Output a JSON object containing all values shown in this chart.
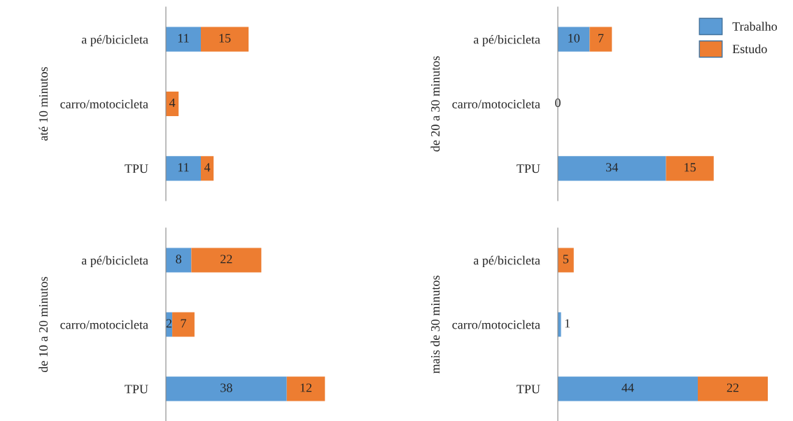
{
  "chart_data": [
    {
      "type": "bar",
      "orientation": "horizontal",
      "stacked": true,
      "ylabel": "até 10 minutos",
      "categories": [
        "a pé/bicicleta",
        "carro/motocicleta",
        "TPU"
      ],
      "data_labels": true,
      "grid": false,
      "series": [
        {
          "color": "#5b9bd5",
          "values": [
            11,
            null,
            11
          ]
        },
        {
          "color": "#ed7d31",
          "values": [
            15,
            4,
            4
          ]
        }
      ]
    },
    {
      "type": "bar",
      "orientation": "horizontal",
      "stacked": true,
      "ylabel": "de 20 a 30 minutos",
      "categories": [
        "a pé/bicicleta",
        "carro/motocicleta",
        "TPU"
      ],
      "data_labels": true,
      "legend": "top right",
      "grid": false,
      "series": [
        {
          "name": "Trabalho",
          "color": "#5b9bd5",
          "values": [
            10,
            0,
            34
          ]
        },
        {
          "name": "Estudo",
          "color": "#ed7d31",
          "values": [
            7,
            null,
            15
          ]
        }
      ]
    },
    {
      "type": "bar",
      "orientation": "horizontal",
      "stacked": true,
      "ylabel": "de 10 a 20 minutos",
      "categories": [
        "a pé/bicicleta",
        "carro/motocicleta",
        "TPU"
      ],
      "data_labels": true,
      "grid": false,
      "series": [
        {
          "color": "#5b9bd5",
          "values": [
            8,
            2,
            38
          ]
        },
        {
          "color": "#ed7d31",
          "values": [
            22,
            7,
            12
          ]
        }
      ]
    },
    {
      "type": "bar",
      "orientation": "horizontal",
      "stacked": true,
      "ylabel": "mais de 30 minutos",
      "categories": [
        "a pé/bicicleta",
        "carro/motocicleta",
        "TPU"
      ],
      "data_labels": true,
      "grid": false,
      "series": [
        {
          "color": "#5b9bd5",
          "values": [
            null,
            1,
            44
          ]
        },
        {
          "color": "#ed7d31",
          "values": [
            5,
            null,
            22
          ]
        }
      ]
    }
  ]
}
